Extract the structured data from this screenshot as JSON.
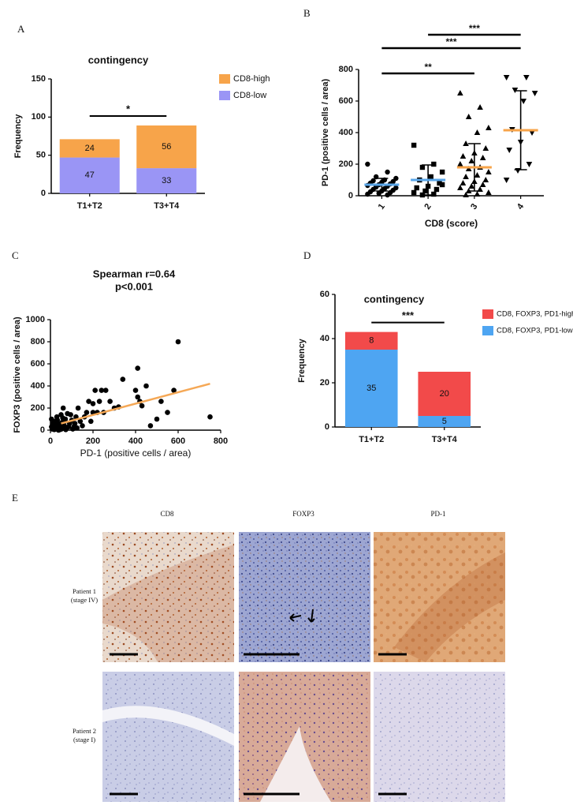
{
  "panel_labels": [
    "A",
    "B",
    "C",
    "D",
    "E"
  ],
  "chart_data": [
    {
      "type": "stacked_bar",
      "title": "contingency",
      "y_label": "Frequency",
      "categories": [
        "T1+T2",
        "T3+T4"
      ],
      "series": [
        {
          "name": "CD8-low",
          "color": "#9a95f5",
          "values": [
            47,
            33
          ]
        },
        {
          "name": "CD8-high",
          "color": "#f7a44a",
          "values": [
            24,
            56
          ]
        }
      ],
      "ylim": [
        0,
        150
      ],
      "yticks": [
        0,
        50,
        100,
        150
      ],
      "legend": "right",
      "annotations": [
        {
          "text": "*",
          "from": "T1+T2",
          "to": "T3+T4"
        }
      ]
    },
    {
      "type": "dot_plot",
      "y_label": "PD-1 (positive cells / area)",
      "x_label": "CD8 (score)",
      "categories": [
        "1",
        "2",
        "3",
        "4"
      ],
      "groups": [
        {
          "marker": "circle",
          "mean": 70,
          "sd": 40,
          "mean_color": "#5aa6e8",
          "values": [
            200,
            150,
            120,
            110,
            100,
            95,
            90,
            85,
            80,
            75,
            70,
            65,
            60,
            55,
            50,
            45,
            40,
            35,
            30,
            25,
            20,
            15,
            10,
            5,
            60
          ]
        },
        {
          "marker": "square",
          "mean": 100,
          "sd": 95,
          "mean_color": "#5aa6e8",
          "values": [
            320,
            200,
            180,
            150,
            120,
            100,
            80,
            60,
            50,
            40,
            30,
            20,
            10,
            5,
            70
          ]
        },
        {
          "marker": "triangle",
          "mean": 180,
          "sd": 150,
          "mean_color": "#f7a44a",
          "values": [
            650,
            560,
            500,
            430,
            400,
            330,
            300,
            270,
            250,
            240,
            220,
            200,
            180,
            170,
            150,
            130,
            120,
            100,
            90,
            80,
            70,
            60,
            50,
            40,
            30,
            20,
            10,
            5
          ]
        },
        {
          "marker": "inverted_triangle",
          "mean": 415,
          "sd": 250,
          "mean_color": "#f7a44a",
          "values": [
            750,
            750,
            670,
            650,
            600,
            420,
            400,
            340,
            290,
            200,
            160,
            100
          ]
        }
      ],
      "ylim": [
        0,
        800
      ],
      "yticks": [
        0,
        200,
        400,
        600,
        800
      ],
      "annotations": [
        {
          "text": "**",
          "from": "1",
          "to": "3"
        },
        {
          "text": "***",
          "from": "1",
          "to": "4"
        },
        {
          "text": "***",
          "from": "2",
          "to": "4"
        }
      ]
    },
    {
      "type": "scatter",
      "title": "Spearman r=0.64",
      "subtitle": "p<0.001",
      "x_label": "PD-1 (positive cells / area)",
      "y_label": "FOXP3 (positive cells / area)",
      "color": "#000000",
      "x": [
        5,
        10,
        15,
        20,
        25,
        30,
        35,
        40,
        45,
        50,
        55,
        60,
        65,
        70,
        75,
        80,
        90,
        100,
        110,
        120,
        130,
        140,
        150,
        160,
        170,
        180,
        190,
        200,
        210,
        220,
        230,
        240,
        250,
        260,
        280,
        300,
        320,
        340,
        400,
        410,
        420,
        430,
        450,
        500,
        520,
        550,
        580,
        600,
        750,
        5,
        8,
        12,
        18,
        22,
        28,
        33,
        38,
        42,
        48,
        52,
        58,
        62,
        68,
        72,
        85,
        95,
        105,
        115,
        125,
        200,
        470,
        410
      ],
      "y": [
        100,
        50,
        20,
        80,
        10,
        120,
        60,
        30,
        5,
        140,
        70,
        200,
        40,
        100,
        20,
        150,
        60,
        90,
        30,
        120,
        200,
        80,
        40,
        120,
        160,
        260,
        80,
        160,
        360,
        160,
        260,
        360,
        160,
        360,
        260,
        200,
        210,
        460,
        360,
        560,
        260,
        220,
        400,
        100,
        260,
        160,
        360,
        800,
        120,
        30,
        10,
        60,
        5,
        40,
        15,
        90,
        0,
        50,
        25,
        10,
        110,
        20,
        80,
        5,
        30,
        140,
        10,
        60,
        20,
        240,
        40,
        300
      ],
      "fit": {
        "x": [
          50,
          750
        ],
        "y": [
          60,
          420
        ],
        "color": "#f5a856"
      },
      "xlim": [
        0,
        800
      ],
      "xticks": [
        0,
        200,
        400,
        600,
        800
      ],
      "ylim": [
        0,
        1000
      ],
      "yticks": [
        0,
        200,
        400,
        600,
        800,
        1000
      ]
    },
    {
      "type": "stacked_bar",
      "title": "contingency",
      "y_label": "Frequency",
      "categories": [
        "T1+T2",
        "T3+T4"
      ],
      "series": [
        {
          "name": "CD8, FOXP3, PD1-low",
          "color": "#4ea5f2",
          "values": [
            35,
            5
          ]
        },
        {
          "name": "CD8, FOXP3, PD1-high",
          "color": "#f24a4a",
          "values": [
            8,
            20
          ]
        }
      ],
      "ylim": [
        0,
        60
      ],
      "yticks": [
        0,
        20,
        40,
        60
      ],
      "legend": "right",
      "annotations": [
        {
          "text": "***",
          "from": "T1+T2",
          "to": "T3+T4"
        }
      ]
    }
  ],
  "figure_e": {
    "columns": [
      "CD8",
      "FOXP3",
      "PD-1"
    ],
    "rows": [
      {
        "patient": "Patient 1",
        "stage": "(stage IV)"
      },
      {
        "patient": "Patient 2",
        "stage": "(stage I)"
      }
    ]
  }
}
